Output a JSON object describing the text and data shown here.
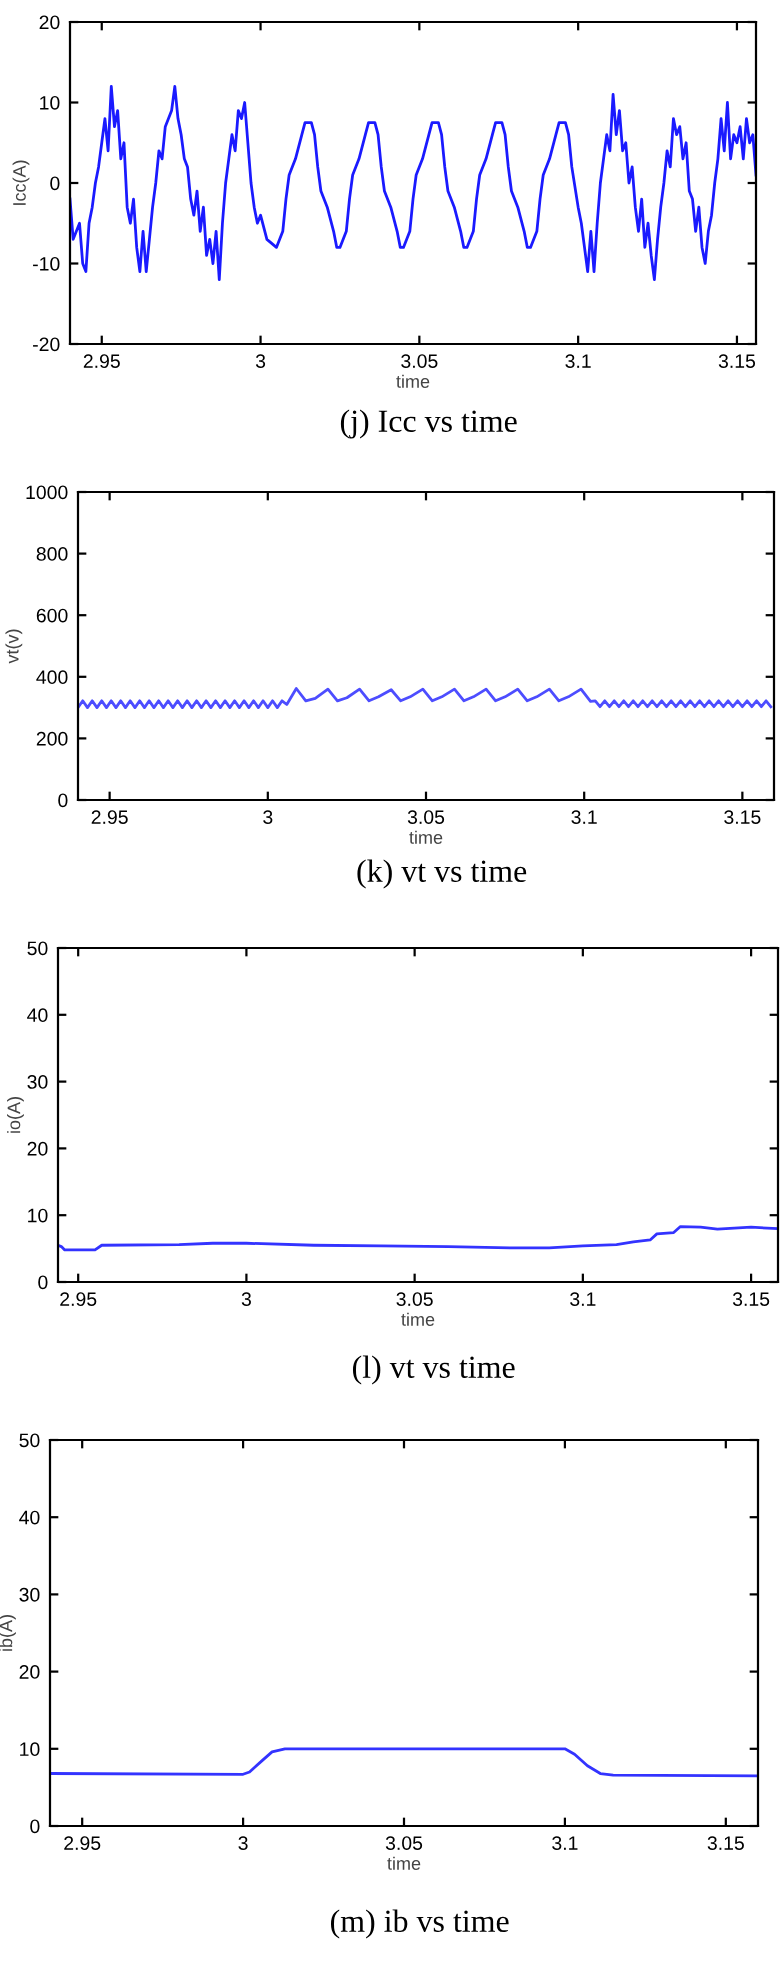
{
  "chart_data": [
    {
      "type": "line",
      "xlabel": "time",
      "ylabel": "Icc(A)",
      "annotations": [
        "(j) Icc vs time"
      ],
      "xlim": [
        2.94,
        3.156
      ],
      "ylim": [
        -20,
        20
      ],
      "xticks": [
        2.95,
        3,
        3.05,
        3.1,
        3.15
      ],
      "yticks": [
        -20,
        -10,
        0,
        10,
        20
      ],
      "grid": false,
      "legend": false,
      "line_style": "solid",
      "series": [
        {
          "color": "#1a1aff",
          "x": [
            2.94,
            2.941,
            2.943,
            2.944,
            2.945,
            2.946,
            2.947,
            2.948,
            2.949,
            2.95,
            2.951,
            2.952,
            2.953,
            2.954,
            2.955,
            2.956,
            2.957,
            2.958,
            2.959,
            2.96,
            2.961,
            2.962,
            2.963,
            2.964,
            2.965,
            2.966,
            2.967,
            2.968,
            2.969,
            2.97,
            2.972,
            2.973,
            2.974,
            2.975,
            2.976,
            2.977,
            2.978,
            2.979,
            2.98,
            2.981,
            2.982,
            2.983,
            2.984,
            2.985,
            2.986,
            2.987,
            2.988,
            2.989,
            2.99,
            2.991,
            2.992,
            2.993,
            2.994,
            2.995,
            2.996,
            2.997,
            2.998,
            2.999,
            3.0,
            3.002,
            3.005,
            3.007,
            3.008,
            3.009,
            3.011,
            3.013,
            3.014,
            3.016,
            3.017,
            3.018,
            3.019,
            3.021,
            3.023,
            3.024,
            3.025,
            3.027,
            3.028,
            3.029,
            3.031,
            3.033,
            3.034,
            3.036,
            3.037,
            3.038,
            3.039,
            3.041,
            3.043,
            3.044,
            3.045,
            3.047,
            3.048,
            3.049,
            3.051,
            3.053,
            3.054,
            3.056,
            3.057,
            3.058,
            3.059,
            3.061,
            3.063,
            3.064,
            3.065,
            3.067,
            3.068,
            3.069,
            3.071,
            3.073,
            3.074,
            3.076,
            3.077,
            3.078,
            3.079,
            3.081,
            3.083,
            3.084,
            3.085,
            3.087,
            3.088,
            3.089,
            3.091,
            3.093,
            3.094,
            3.096,
            3.097,
            3.098,
            3.1,
            3.101,
            3.102,
            3.103,
            3.104,
            3.105,
            3.106,
            3.107,
            3.108,
            3.109,
            3.11,
            3.111,
            3.112,
            3.113,
            3.114,
            3.115,
            3.116,
            3.117,
            3.118,
            3.119,
            3.12,
            3.121,
            3.122,
            3.123,
            3.124,
            3.125,
            3.126,
            3.127,
            3.128,
            3.129,
            3.13,
            3.131,
            3.132,
            3.133,
            3.134,
            3.135,
            3.136,
            3.137,
            3.138,
            3.139,
            3.14,
            3.141,
            3.142,
            3.143,
            3.144,
            3.145,
            3.146,
            3.147,
            3.148,
            3.149,
            3.15,
            3.151,
            3.152,
            3.153,
            3.154,
            3.155,
            3.156
          ],
          "values": [
            -2,
            -7,
            -5,
            -10,
            -11,
            -5,
            -3,
            0,
            2,
            5,
            8,
            4,
            12,
            7,
            9,
            3,
            5,
            -3,
            -5,
            -2,
            -8,
            -11,
            -6,
            -11,
            -7,
            -3,
            0,
            4,
            3,
            7,
            9,
            12,
            8,
            6,
            3,
            2,
            -2,
            -4,
            -1,
            -6,
            -3,
            -9,
            -7,
            -10,
            -6,
            -12,
            -5,
            0,
            3,
            6,
            4,
            9,
            8,
            10,
            5,
            0,
            -3,
            -5,
            -4,
            -7,
            -8,
            -6,
            -2,
            1,
            3,
            6,
            7.5,
            7.5,
            6,
            2,
            -1,
            -3,
            -6,
            -8,
            -8,
            -6,
            -2,
            1,
            3,
            6,
            7.5,
            7.5,
            6,
            2,
            -1,
            -3,
            -6,
            -8,
            -8,
            -6,
            -2,
            1,
            3,
            6,
            7.5,
            7.5,
            6,
            2,
            -1,
            -3,
            -6,
            -8,
            -8,
            -6,
            -2,
            1,
            3,
            6,
            7.5,
            7.5,
            6,
            2,
            -1,
            -3,
            -6,
            -8,
            -8,
            -6,
            -2,
            1,
            3,
            6,
            7.5,
            7.5,
            6,
            2,
            -3,
            -5,
            -8,
            -11,
            -6,
            -11,
            -5,
            0,
            3,
            6,
            4,
            11,
            6,
            9,
            4,
            5,
            0,
            2,
            -3,
            -6,
            -2,
            -8,
            -5,
            -9,
            -12,
            -7,
            -3,
            0,
            4,
            2,
            8,
            6,
            7,
            3,
            5,
            -1,
            -2,
            -6,
            -3,
            -8,
            -10,
            -6,
            -4,
            0,
            3,
            8,
            4,
            10,
            3,
            6,
            5,
            7,
            3,
            8,
            5,
            6,
            1
          ]
        }
      ]
    },
    {
      "type": "line",
      "xlabel": "time",
      "ylabel": "vt(v)",
      "annotations": [
        "(k) vt vs time"
      ],
      "xlim": [
        2.94,
        3.16
      ],
      "ylim": [
        0,
        1000
      ],
      "xticks": [
        2.95,
        3,
        3.05,
        3.1,
        3.15
      ],
      "yticks": [
        0,
        200,
        400,
        600,
        800,
        1000
      ],
      "grid": false,
      "legend": false,
      "line_style": "solid",
      "series": [
        {
          "color": "#4d4dff",
          "x": [
            2.94,
            2.9415,
            2.943,
            2.9445,
            2.946,
            2.9475,
            2.949,
            2.9505,
            2.952,
            2.9535,
            2.955,
            2.9565,
            2.958,
            2.9595,
            2.961,
            2.9625,
            2.964,
            2.9655,
            2.967,
            2.9685,
            2.97,
            2.9715,
            2.973,
            2.9745,
            2.976,
            2.9775,
            2.979,
            2.9805,
            2.982,
            2.9835,
            2.985,
            2.9865,
            2.988,
            2.9895,
            2.991,
            2.9925,
            2.994,
            2.9955,
            2.997,
            2.9985,
            3.0,
            3.0015,
            3.003,
            3.0045,
            3.006,
            3.009,
            3.012,
            3.015,
            3.019,
            3.022,
            3.025,
            3.029,
            3.032,
            3.035,
            3.039,
            3.042,
            3.045,
            3.049,
            3.052,
            3.055,
            3.059,
            3.062,
            3.065,
            3.069,
            3.072,
            3.075,
            3.079,
            3.082,
            3.085,
            3.089,
            3.092,
            3.095,
            3.099,
            3.102,
            3.1035,
            3.105,
            3.1065,
            3.108,
            3.1095,
            3.111,
            3.1125,
            3.114,
            3.1155,
            3.117,
            3.1185,
            3.12,
            3.1215,
            3.123,
            3.1245,
            3.126,
            3.1275,
            3.129,
            3.1305,
            3.132,
            3.1335,
            3.135,
            3.1365,
            3.138,
            3.1395,
            3.141,
            3.1425,
            3.144,
            3.1455,
            3.147,
            3.1485,
            3.15,
            3.1515,
            3.153,
            3.1545,
            3.156,
            3.1575,
            3.159
          ],
          "values": [
            300,
            322,
            300,
            322,
            300,
            322,
            300,
            322,
            300,
            322,
            300,
            322,
            300,
            322,
            300,
            322,
            300,
            322,
            300,
            322,
            300,
            322,
            300,
            322,
            300,
            322,
            300,
            322,
            300,
            322,
            300,
            322,
            300,
            322,
            300,
            322,
            300,
            322,
            300,
            322,
            300,
            322,
            300,
            322,
            310,
            362,
            322,
            330,
            360,
            322,
            332,
            360,
            322,
            335,
            358,
            322,
            335,
            360,
            322,
            335,
            360,
            322,
            335,
            360,
            322,
            335,
            360,
            322,
            335,
            360,
            322,
            335,
            360,
            320,
            322,
            303,
            322,
            303,
            322,
            303,
            322,
            303,
            322,
            303,
            322,
            303,
            322,
            303,
            322,
            303,
            322,
            303,
            322,
            303,
            322,
            303,
            322,
            303,
            322,
            303,
            322,
            303,
            322,
            303,
            322,
            303,
            322,
            303,
            322,
            303,
            322,
            303
          ]
        }
      ]
    },
    {
      "type": "line",
      "xlabel": "time",
      "ylabel": "io(A)",
      "annotations": [
        "(l) vt vs time"
      ],
      "xlim": [
        2.944,
        3.158
      ],
      "ylim": [
        0,
        50
      ],
      "xticks": [
        2.95,
        3,
        3.05,
        3.1,
        3.15
      ],
      "yticks": [
        0,
        10,
        20,
        30,
        40,
        50
      ],
      "grid": false,
      "legend": false,
      "line_style": "solid",
      "series": [
        {
          "color": "#3333ff",
          "x": [
            2.944,
            2.945,
            2.946,
            2.955,
            2.957,
            2.98,
            2.99,
            3.0,
            3.02,
            3.04,
            3.06,
            3.08,
            3.09,
            3.1,
            3.11,
            3.115,
            3.12,
            3.122,
            3.127,
            3.129,
            3.135,
            3.14,
            3.15,
            3.158
          ],
          "values": [
            5.5,
            5.3,
            4.8,
            4.8,
            5.5,
            5.6,
            5.8,
            5.8,
            5.5,
            5.4,
            5.3,
            5.1,
            5.1,
            5.4,
            5.6,
            6.0,
            6.3,
            7.2,
            7.4,
            8.3,
            8.2,
            7.9,
            8.2,
            8.0
          ]
        }
      ]
    },
    {
      "type": "line",
      "xlabel": "time",
      "ylabel": "ib(A)",
      "annotations": [
        "(m) ib vs time"
      ],
      "xlim": [
        2.94,
        3.16
      ],
      "ylim": [
        0,
        50
      ],
      "xticks": [
        2.95,
        3,
        3.05,
        3.1,
        3.15
      ],
      "yticks": [
        0,
        10,
        20,
        30,
        40,
        50
      ],
      "grid": false,
      "legend": false,
      "line_style": "solid",
      "series": [
        {
          "color": "#3333ff",
          "x": [
            2.94,
            3.0,
            3.002,
            3.006,
            3.009,
            3.013,
            3.1,
            3.103,
            3.107,
            3.111,
            3.115,
            3.16
          ],
          "values": [
            6.8,
            6.7,
            7.0,
            8.5,
            9.6,
            10,
            10,
            9.3,
            7.8,
            6.8,
            6.6,
            6.5
          ]
        }
      ]
    }
  ]
}
